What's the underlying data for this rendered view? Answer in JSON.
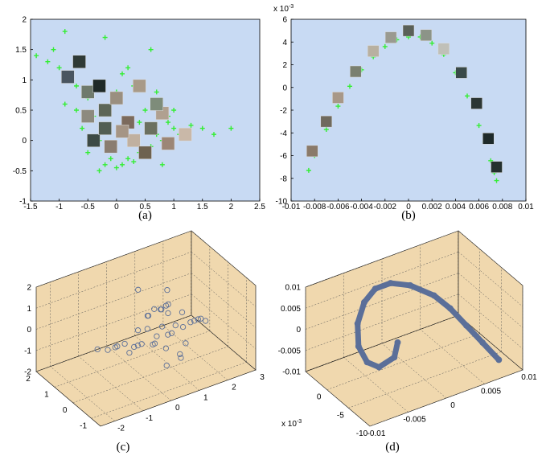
{
  "chart_data": [
    {
      "type": "scatter",
      "caption": "(a)",
      "background": "#c8daf3",
      "xlim": [
        -1.5,
        2.5
      ],
      "xticks": [
        -1.5,
        -1,
        -0.5,
        0,
        0.5,
        1,
        1.5,
        2,
        2.5
      ],
      "ylim": [
        -1,
        2
      ],
      "yticks": [
        -1,
        -0.5,
        0,
        0.5,
        1,
        1.5,
        2
      ],
      "series": [
        {
          "marker": "plus",
          "color": "#33ee33",
          "x": [
            -1.4,
            -1.2,
            -1.1,
            -1.0,
            -0.9,
            -0.8,
            -0.7,
            -0.6,
            -0.5,
            -0.4,
            -0.3,
            -0.2,
            -0.1,
            0,
            0.1,
            0.2,
            0.3,
            0.4,
            0.5,
            0.6,
            0.7,
            0.8,
            0.9,
            1.0,
            1.1,
            1.2,
            1.3,
            1.5,
            1.7,
            2.0,
            -0.9,
            -0.6,
            -0.3,
            0.2,
            0.6,
            1.0,
            -0.5,
            -0.2,
            0.0,
            0.3,
            0.7,
            1.2,
            -0.4,
            0.1,
            0.5,
            0.9,
            -0.1,
            0.4,
            0.8,
            -0.7
          ],
          "values": [
            1.4,
            1.3,
            1.5,
            1.2,
            1.8,
            1.0,
            0.9,
            1.3,
            0.7,
            0.4,
            -0.5,
            -0.4,
            -0.3,
            -0.45,
            -0.4,
            -0.3,
            -0.35,
            -0.2,
            -0.25,
            -0.1,
            0.1,
            0.0,
            0.3,
            0.2,
            0.1,
            0.15,
            0.25,
            0.2,
            0.1,
            0.2,
            0.6,
            0.2,
            0.0,
            1.2,
            1.5,
            0.5,
            -0.2,
            1.7,
            0.8,
            0.9,
            0.8,
            0.05,
            0.9,
            1.1,
            0.5,
            0.4,
            -0.1,
            0.3,
            -0.4,
            0.5
          ]
        },
        {
          "marker": "thumbnail",
          "colors": [
            "#4a5560",
            "#2f3a36",
            "#6f7a6c",
            "#1f2a28",
            "#8d8a7e",
            "#5d6658",
            "#9a8f80",
            "#7b6a5c",
            "#a89a88",
            "#6b7060",
            "#b0a090",
            "#3d4a45",
            "#8a7d70",
            "#c0b0a0",
            "#6e6250",
            "#c9b8a8",
            "#9c8676",
            "#525e54",
            "#a59585",
            "#7e8c7a"
          ],
          "x": [
            -0.85,
            -0.65,
            -0.5,
            -0.3,
            -0.5,
            -0.2,
            0.0,
            0.2,
            0.4,
            0.6,
            0.8,
            -0.4,
            -0.1,
            0.3,
            0.5,
            1.2,
            0.9,
            -0.2,
            0.1,
            0.7
          ],
          "values": [
            1.05,
            1.3,
            0.8,
            0.9,
            0.4,
            0.5,
            0.7,
            0.3,
            0.9,
            0.2,
            0.45,
            0.0,
            -0.1,
            0.0,
            -0.2,
            0.1,
            -0.05,
            0.2,
            0.15,
            0.6
          ]
        }
      ]
    },
    {
      "type": "scatter",
      "caption": "(b)",
      "background": "#c8daf3",
      "y_exponent_base": "x 10",
      "y_exponent": "-3",
      "xlim": [
        -0.01,
        0.01
      ],
      "xticks": [
        -0.01,
        -0.008,
        -0.006,
        -0.004,
        -0.002,
        0,
        0.002,
        0.004,
        0.006,
        0.008,
        0.01
      ],
      "ylim": [
        -10,
        6
      ],
      "yticks": [
        -10,
        -8,
        -6,
        -4,
        -2,
        0,
        2,
        4,
        6
      ],
      "series": [
        {
          "marker": "plus",
          "color": "#33ee33",
          "x": [
            -0.0085,
            -0.008,
            -0.007,
            -0.006,
            -0.005,
            -0.004,
            -0.003,
            -0.002,
            -0.001,
            0,
            0.001,
            0.002,
            0.003,
            0.004,
            0.005,
            0.006,
            0.0065,
            0.007,
            0.0073,
            0.0075
          ],
          "values": [
            -7.3,
            -6.0,
            -3.7,
            -1.65,
            0.1,
            1.55,
            2.7,
            3.6,
            4.2,
            4.45,
            4.45,
            3.9,
            2.9,
            1.3,
            -0.75,
            -3.35,
            -4.8,
            -6.45,
            -7.5,
            -8.2
          ]
        },
        {
          "marker": "thumbnail",
          "colors": [
            "#8a7a6a",
            "#6f6a5e",
            "#a89888",
            "#7a8070",
            "#b8b0a0",
            "#9a9a90",
            "#5a6058",
            "#8c9488",
            "#c0c0b8",
            "#3a4a48",
            "#2c3634",
            "#1e2a2a",
            "#24302e"
          ],
          "x": [
            -0.0082,
            -0.007,
            -0.006,
            -0.0045,
            -0.003,
            -0.0015,
            0,
            0.0015,
            0.003,
            0.0045,
            0.0058,
            0.0068,
            0.0075
          ],
          "values": [
            -5.6,
            -3.0,
            -0.9,
            1.4,
            3.2,
            4.4,
            5.0,
            4.6,
            3.4,
            1.3,
            -1.4,
            -4.5,
            -7.0
          ]
        }
      ]
    },
    {
      "type": "scatter3d",
      "caption": "(c)",
      "background": "#f0d8ae",
      "xlim": [
        -2.5,
        3
      ],
      "xticks": [
        -2,
        -1,
        0,
        1,
        2,
        3
      ],
      "ylim": [
        -1.5,
        2
      ],
      "yticks": [
        -1,
        0,
        1,
        2
      ],
      "zlim": [
        -2,
        2
      ],
      "zticks": [
        -2,
        -1,
        0,
        1,
        2
      ],
      "series": [
        {
          "marker": "circle",
          "color": "#5b6f99",
          "x": [
            -1.5,
            -1.2,
            -1.0,
            -0.8,
            -0.6,
            -0.4,
            -0.2,
            0,
            0.2,
            0.4,
            0.6,
            0.8,
            1.0,
            1.2,
            1.4,
            1.6,
            1.8,
            2.0,
            2.2,
            0.5,
            0.8,
            1.0,
            0.3,
            0.6,
            1.1,
            1.3,
            0.9,
            0.0,
            0.4,
            0.7,
            -0.5,
            1.5,
            1.9,
            0.2,
            0.9,
            1.2,
            0.6,
            0.8,
            1.0,
            0.4
          ],
          "y": [
            0.2,
            0.1,
            0.0,
            0.2,
            0.1,
            -0.1,
            0.0,
            0.1,
            -0.2,
            0.0,
            0.2,
            -0.1,
            0.0,
            0.1,
            0.0,
            -0.1,
            0.0,
            0.1,
            0.0,
            0.5,
            0.3,
            -0.5,
            -0.8,
            0.7,
            0.4,
            -0.3,
            -0.6,
            0.3,
            -0.4,
            0.1,
            0.0,
            0.2,
            -0.2,
            0.6,
            0.8,
            0.5,
            -0.3,
            0.0,
            0.2,
            0.4
          ],
          "z": [
            -0.1,
            -0.2,
            -0.1,
            -0.3,
            -0.2,
            -0.3,
            -0.4,
            -0.5,
            -0.4,
            -0.6,
            -0.5,
            -0.3,
            -0.4,
            -0.2,
            -0.3,
            -0.1,
            -0.2,
            -0.3,
            -0.4,
            0.3,
            0.6,
            -1.2,
            -1.0,
            0.1,
            1.3,
            -0.8,
            -0.9,
            0.0,
            0.5,
            0.8,
            -0.6,
            0.2,
            0.0,
            1.6,
            0.2,
            0.5,
            -0.7,
            1.0,
            0.4,
            -0.2
          ]
        }
      ]
    },
    {
      "type": "line3d",
      "caption": "(d)",
      "background": "#f0d8ae",
      "y_exponent_base": "x 10",
      "y_exponent": "-3",
      "xlim": [
        -0.01,
        0.01
      ],
      "xticks": [
        -0.01,
        -0.005,
        0,
        0.005,
        0.01
      ],
      "ylim": [
        -10,
        5
      ],
      "yticks": [
        -10,
        -5,
        0
      ],
      "zlim": [
        -0.01,
        0.01
      ],
      "zticks": [
        -0.01,
        -0.005,
        0,
        0.005,
        0.01
      ],
      "series": [
        {
          "marker": "circle",
          "color": "#5b6f99",
          "x": [
            0.008,
            0.007,
            0.006,
            0.005,
            0.004,
            0.002,
            0.0,
            -0.002,
            -0.004,
            -0.006,
            -0.007,
            -0.007,
            -0.006,
            -0.004,
            -0.003
          ],
          "y": [
            -8,
            -6,
            -4,
            -2,
            0,
            2,
            3,
            3,
            2,
            0,
            -2,
            -4,
            -5,
            -5,
            -4
          ],
          "z": [
            -0.008,
            -0.005,
            -0.002,
            0.001,
            0.003,
            0.005,
            0.006,
            0.006,
            0.005,
            0.003,
            0.0,
            -0.002,
            -0.003,
            -0.002,
            0.0
          ]
        }
      ]
    }
  ]
}
